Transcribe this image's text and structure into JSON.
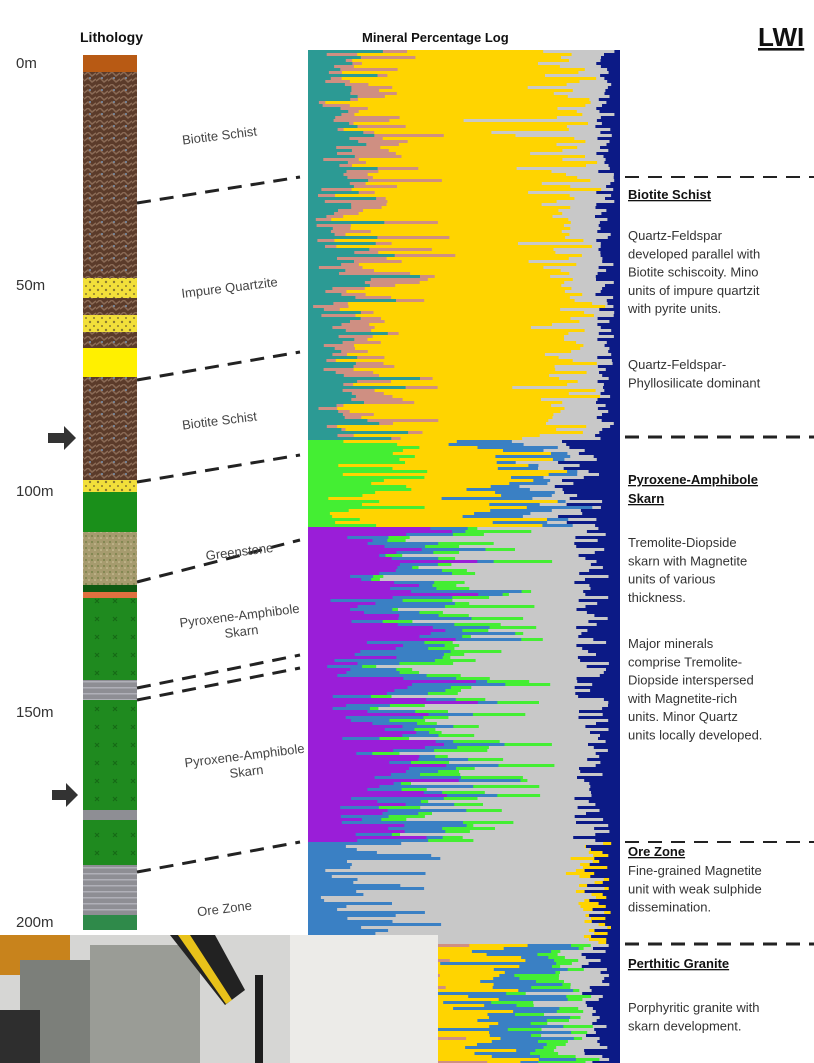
{
  "header": {
    "lithology_title": "Lithology",
    "log_title": "Mineral Percentage Log",
    "site": "LWI"
  },
  "depth_labels": [
    "0m",
    "50m",
    "100m",
    "150m",
    "200m"
  ],
  "lithology_labels": [
    "Biotite Schist",
    "Impure Quartzite",
    "Biotite Schist",
    "Greenstone",
    "Pyroxene-Amphibole Skarn",
    "Pyroxene-Amphibole Skarn",
    "Ore Zone"
  ],
  "descriptions": [
    {
      "heading": [
        "Biotite Schist"
      ],
      "paragraphs": [
        [
          "Quartz-Feldspar",
          "developed parallel with",
          "Biotite schiscoity.  Mino",
          "units of impure quartzit",
          "with pyrite units."
        ],
        [
          "Quartz-Feldspar-",
          "Phyllosilicate dominant"
        ]
      ]
    },
    {
      "heading": [
        "Pyroxene-Amphibole",
        "Skarn"
      ],
      "paragraphs": [
        [
          "Tremolite-Diopside",
          "skarn with Magnetite",
          "units of various",
          "thickness."
        ],
        [
          "Major minerals",
          "comprise Tremolite-",
          "Diopside interspersed",
          "with Magnetite-rich",
          "units.  Minor Quartz",
          "units locally developed."
        ]
      ]
    },
    {
      "heading": [
        "Ore Zone"
      ],
      "paragraphs": [
        [
          "Fine-grained Magnetite",
          "unit with weak sulphide",
          "dissemination."
        ]
      ]
    },
    {
      "heading": [
        "Perthitic Granite"
      ],
      "paragraphs": [
        [
          "Porphyritic granite with",
          "skarn development."
        ]
      ]
    }
  ]
}
